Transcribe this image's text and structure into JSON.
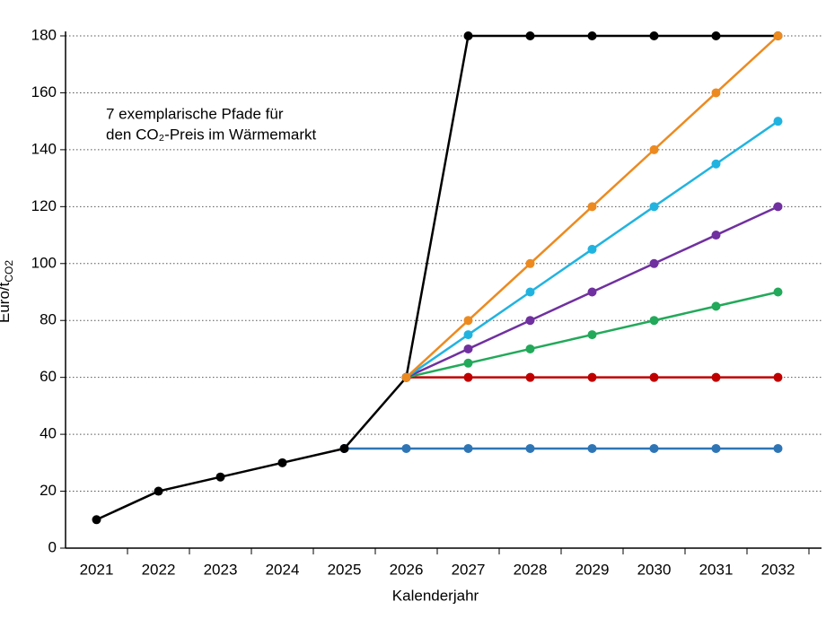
{
  "chart_data": {
    "type": "line",
    "annotation": [
      "7 exemplarische  Pfade für",
      "den CO₂-Preis im Wärmemarkt"
    ],
    "ylabel": "Euro/t",
    "ylabel_sub": "CO2",
    "xlabel": "Kalenderjahr",
    "categories": [
      "2021",
      "2022",
      "2023",
      "2024",
      "2025",
      "2026",
      "2027",
      "2028",
      "2029",
      "2030",
      "2031",
      "2032"
    ],
    "series": [
      {
        "color": "#2e75b6",
        "values": [
          null,
          null,
          null,
          null,
          35,
          35,
          35,
          35,
          35,
          35,
          35,
          35
        ]
      },
      {
        "color": "#c00000",
        "values": [
          null,
          null,
          null,
          null,
          null,
          60,
          60,
          60,
          60,
          60,
          60,
          60
        ]
      },
      {
        "color": "#22a95a",
        "values": [
          null,
          null,
          null,
          null,
          null,
          60,
          65,
          70,
          75,
          80,
          85,
          90
        ]
      },
      {
        "color": "#7030a0",
        "values": [
          null,
          null,
          null,
          null,
          null,
          60,
          70,
          80,
          90,
          100,
          110,
          120
        ]
      },
      {
        "color": "#21b3e0",
        "values": [
          null,
          null,
          null,
          null,
          null,
          60,
          75,
          90,
          105,
          120,
          135,
          150
        ]
      },
      {
        "color": "#000000",
        "values": [
          10,
          20,
          25,
          30,
          35,
          60,
          180,
          180,
          180,
          180,
          180,
          180
        ]
      },
      {
        "color": "#ed8a1f",
        "values": [
          null,
          null,
          null,
          null,
          null,
          60,
          80,
          100,
          120,
          140,
          160,
          180
        ]
      }
    ],
    "ylim": [
      0,
      180
    ],
    "yticks": [
      0,
      20,
      40,
      60,
      80,
      100,
      120,
      140,
      160,
      180
    ],
    "grid": true
  }
}
